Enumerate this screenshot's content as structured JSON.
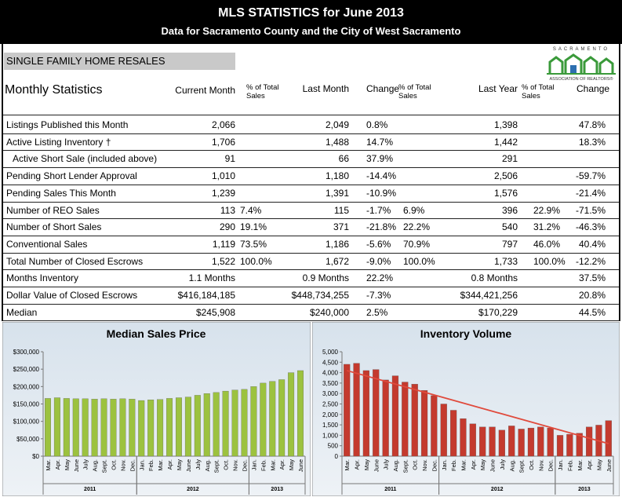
{
  "header": {
    "title": "MLS STATISTICS for June 2013",
    "subtitle": "Data for Sacramento County and the City of West Sacramento"
  },
  "section": "SINGLE FAMILY HOME RESALES",
  "logo": {
    "top": "SACRAMENTO",
    "bottom": "ASSOCIATION OF REALTORS®"
  },
  "table": {
    "columns": [
      "Monthly Statistics",
      "Current Month",
      "% of Total Sales",
      "Last Month",
      "Change",
      "% of Total Sales",
      "Last Year",
      "% of Total Sales",
      "Change"
    ],
    "rows": [
      [
        "Listings Published this Month",
        "2,066",
        null,
        "2,049",
        "0.8%",
        null,
        "1,398",
        null,
        "47.8%"
      ],
      [
        "Active Listing Inventory †",
        "1,706",
        null,
        "1,488",
        "14.7%",
        null,
        "1,442",
        null,
        "18.3%"
      ],
      [
        "Active Short Sale (included above)",
        "91",
        null,
        "66",
        "37.9%",
        null,
        "291",
        null,
        null
      ],
      [
        "Pending Short Lender Approval",
        "1,010",
        null,
        "1,180",
        "-14.4%",
        null,
        "2,506",
        null,
        "-59.7%"
      ],
      [
        "Pending Sales This Month",
        "1,239",
        null,
        "1,391",
        "-10.9%",
        null,
        "1,576",
        null,
        "-21.4%"
      ],
      [
        "Number of REO Sales",
        "113",
        "7.4%",
        "115",
        "-1.7%",
        "6.9%",
        "396",
        "22.9%",
        "-71.5%"
      ],
      [
        "Number of Short Sales",
        "290",
        "19.1%",
        "371",
        "-21.8%",
        "22.2%",
        "540",
        "31.2%",
        "-46.3%"
      ],
      [
        "Conventional Sales",
        "1,119",
        "73.5%",
        "1,186",
        "-5.6%",
        "70.9%",
        "797",
        "46.0%",
        "40.4%"
      ],
      [
        "Total Number of Closed Escrows",
        "1,522",
        "100.0%",
        "1,672",
        "-9.0%",
        "100.0%",
        "1,733",
        "100.0%",
        "-12.2%"
      ],
      [
        "Months Inventory",
        "1.1 Months",
        null,
        "0.9 Months",
        "22.2%",
        null,
        "0.8 Months",
        null,
        "37.5%"
      ],
      [
        "Dollar Value of Closed Escrows",
        "$416,184,185",
        null,
        "$448,734,255",
        "-7.3%",
        null,
        "$344,421,256",
        null,
        "20.8%"
      ],
      [
        "Median",
        "$245,908",
        null,
        "$240,000",
        "2.5%",
        null,
        "$170,229",
        null,
        "44.5%"
      ]
    ]
  },
  "chart_data": [
    {
      "type": "bar",
      "title": "Median Sales Price",
      "color": "#9cc23f",
      "ylim": [
        0,
        300000
      ],
      "yticks": [
        {
          "value": 0,
          "label": "$0"
        },
        {
          "value": 50000,
          "label": "$50,000"
        },
        {
          "value": 100000,
          "label": "$100,000"
        },
        {
          "value": 150000,
          "label": "$150,000"
        },
        {
          "value": 200000,
          "label": "$200,000"
        },
        {
          "value": 250000,
          "label": "$250,000"
        },
        {
          "value": 300000,
          "label": "$300,000"
        }
      ],
      "groups": [
        {
          "label": "2011",
          "categories": [
            "Mar.",
            "Apr.",
            "May",
            "June",
            "July",
            "Aug.",
            "Sept.",
            "Oct.",
            "Nov.",
            "Dec."
          ],
          "values": [
            166000,
            168000,
            166000,
            165000,
            165000,
            164000,
            165000,
            164000,
            165000,
            164000
          ]
        },
        {
          "label": "2012",
          "categories": [
            "Jan.",
            "Feb.",
            "Mar.",
            "Apr.",
            "May",
            "June",
            "July",
            "Aug.",
            "Sept.",
            "Oct.",
            "Nov.",
            "Dec."
          ],
          "values": [
            160000,
            162000,
            163000,
            166000,
            168000,
            170000,
            175000,
            180000,
            183000,
            187000,
            190000,
            192000
          ]
        },
        {
          "label": "2013",
          "categories": [
            "Jan.",
            "Feb.",
            "Mar.",
            "Apr.",
            "May",
            "June"
          ],
          "values": [
            200000,
            210000,
            215000,
            220000,
            240000,
            245908
          ]
        }
      ]
    },
    {
      "type": "bar",
      "title": "Inventory Volume",
      "color": "#c43a2e",
      "ylim": [
        0,
        5000
      ],
      "yticks": [
        0,
        500,
        {
          "value": 1000,
          "label": "1,000"
        },
        {
          "value": 1500,
          "label": "1,500"
        },
        {
          "value": 2000,
          "label": "2,000"
        },
        {
          "value": 2500,
          "label": "2,500"
        },
        {
          "value": 3000,
          "label": "3,000"
        },
        {
          "value": 3500,
          "label": "3,500"
        },
        {
          "value": 4000,
          "label": "4,000"
        },
        {
          "value": 4500,
          "label": "4,500"
        },
        {
          "value": 5000,
          "label": "5,000"
        }
      ],
      "trendline": {
        "color": "#e04a3c",
        "values": [
          4100,
          600
        ]
      },
      "groups": [
        {
          "label": "2011",
          "categories": [
            "Mar.",
            "Apr.",
            "May",
            "June",
            "July",
            "Aug.",
            "Sept.",
            "Oct.",
            "Nov.",
            "Dec."
          ],
          "values": [
            4400,
            4450,
            4100,
            4150,
            3650,
            3850,
            3550,
            3450,
            3150,
            2900
          ]
        },
        {
          "label": "2012",
          "categories": [
            "Jan.",
            "Feb.",
            "Mar.",
            "Apr.",
            "May",
            "June",
            "July",
            "Aug.",
            "Sept.",
            "Oct.",
            "Nov.",
            "Dec."
          ],
          "values": [
            2500,
            2200,
            1800,
            1550,
            1400,
            1400,
            1250,
            1450,
            1300,
            1350,
            1400,
            1350
          ]
        },
        {
          "label": "2013",
          "categories": [
            "Jan.",
            "Feb.",
            "Mar.",
            "Apr.",
            "May",
            "June"
          ],
          "values": [
            1000,
            1050,
            1100,
            1400,
            1488,
            1706
          ]
        }
      ]
    }
  ]
}
